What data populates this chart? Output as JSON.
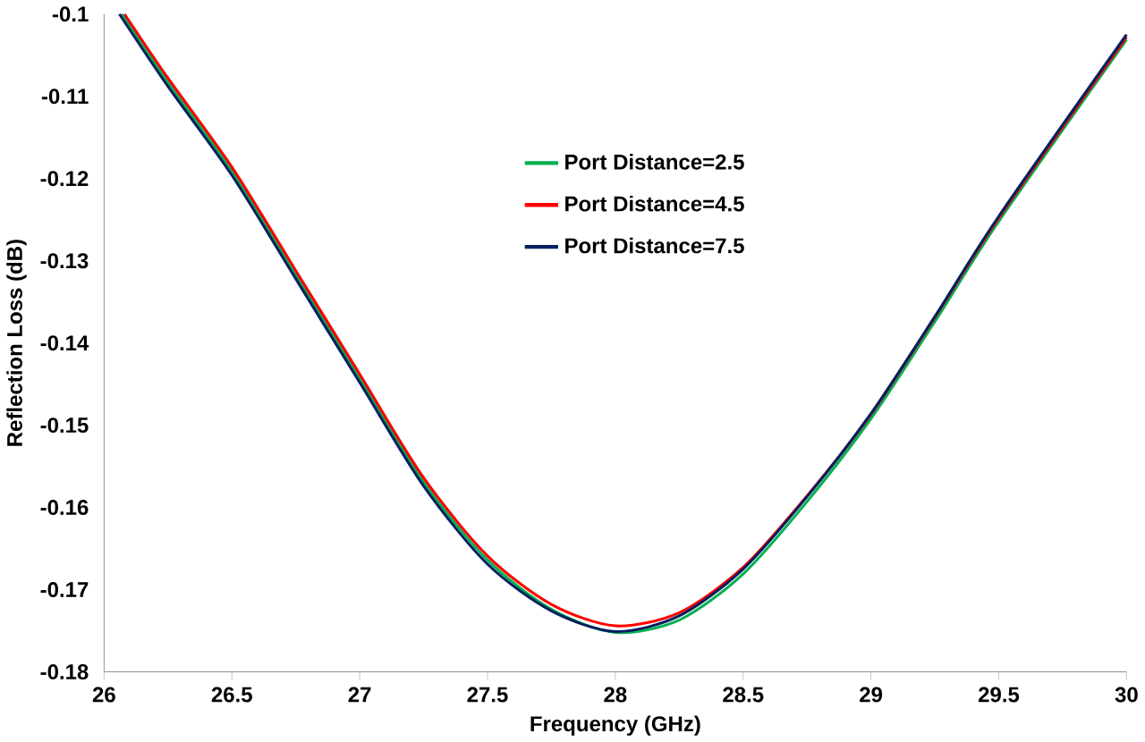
{
  "chart_data": {
    "type": "line",
    "xlabel": "Frequency (GHz)",
    "ylabel": "Reflection Loss (dB)",
    "xlim": [
      26,
      30
    ],
    "xticks": [
      26,
      26.5,
      27,
      27.5,
      28,
      28.5,
      29,
      29.5,
      30
    ],
    "ylim": [
      -0.18,
      -0.1
    ],
    "yticks": [
      -0.18,
      -0.17,
      -0.16,
      -0.15,
      -0.14,
      -0.13,
      -0.12,
      -0.11,
      -0.1
    ],
    "grid": false,
    "legend": "top",
    "marker": "none",
    "line_style": "solid",
    "series": [
      {
        "name": "Port Distance=2.5",
        "color": "#00b050",
        "x": [
          26.07,
          26.25,
          26.5,
          26.75,
          27.0,
          27.25,
          27.5,
          27.75,
          28.0,
          28.25,
          28.5,
          28.75,
          29.0,
          29.25,
          29.5,
          30.0
        ],
        "values": [
          -0.1,
          -0.1083,
          -0.1191,
          -0.1317,
          -0.1443,
          -0.1569,
          -0.1664,
          -0.1724,
          -0.1752,
          -0.1737,
          -0.1681,
          -0.1593,
          -0.1492,
          -0.1374,
          -0.1252,
          -0.1031
        ]
      },
      {
        "name": "Port Distance=4.5",
        "color": "#ff0000",
        "x": [
          26.08,
          26.25,
          26.5,
          26.75,
          27.0,
          27.25,
          27.5,
          27.75,
          28.0,
          28.25,
          28.5,
          28.75,
          29.0,
          29.25,
          29.5,
          30.0
        ],
        "values": [
          -0.1,
          -0.1078,
          -0.1186,
          -0.1312,
          -0.1438,
          -0.1564,
          -0.1659,
          -0.1718,
          -0.1744,
          -0.1728,
          -0.1673,
          -0.1586,
          -0.1487,
          -0.1369,
          -0.1248,
          -0.1028
        ]
      },
      {
        "name": "Port Distance=7.5",
        "color": "#002060",
        "x": [
          26.06,
          26.25,
          26.5,
          26.75,
          27.0,
          27.25,
          27.5,
          27.75,
          28.0,
          28.25,
          28.5,
          28.75,
          29.0,
          29.25,
          29.5,
          30.0
        ],
        "values": [
          -0.1,
          -0.1088,
          -0.1196,
          -0.1322,
          -0.1448,
          -0.1574,
          -0.1669,
          -0.1726,
          -0.1751,
          -0.1732,
          -0.1675,
          -0.1587,
          -0.1486,
          -0.1368,
          -0.1246,
          -0.1025
        ]
      }
    ]
  }
}
